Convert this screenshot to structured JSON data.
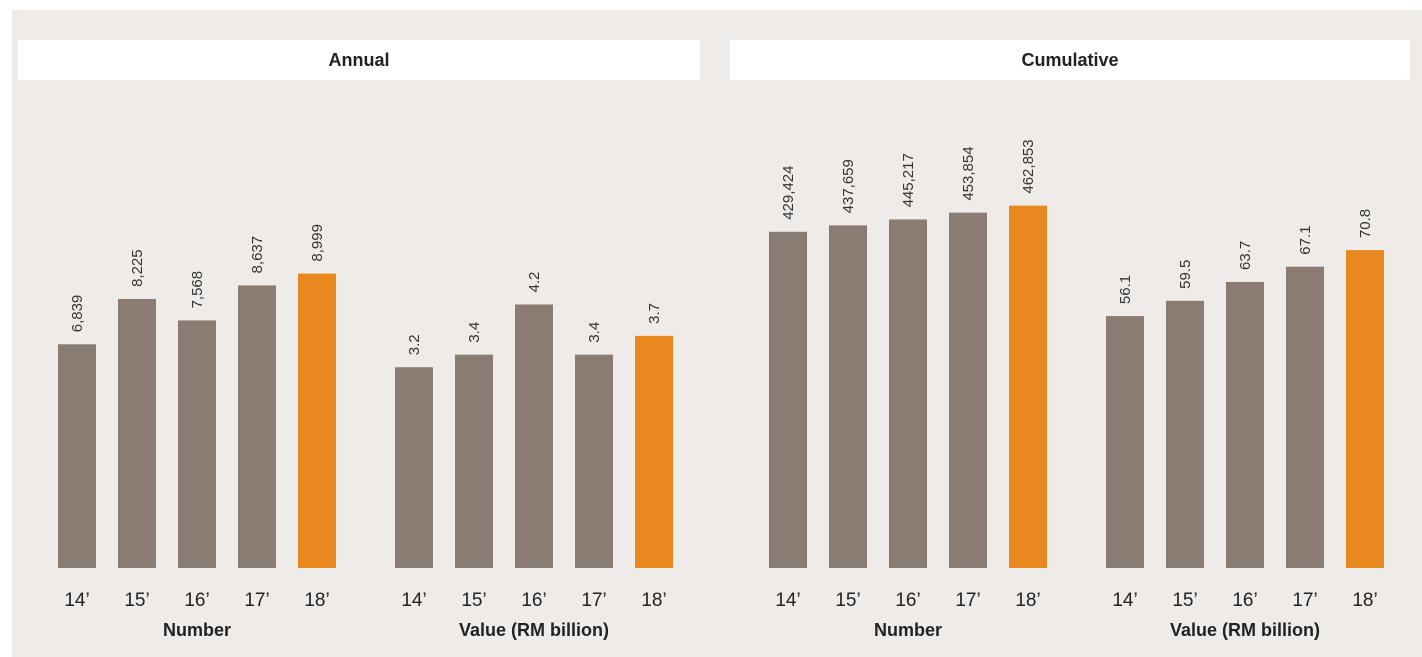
{
  "sections": [
    {
      "title": "Annual"
    },
    {
      "title": "Cumulative"
    }
  ],
  "colors": {
    "bar": "#8a7c73",
    "highlight": "#ea8820",
    "panel_bg": "#efebe8"
  },
  "chart_data": [
    {
      "type": "bar",
      "section": "Annual",
      "categories": [
        "14’",
        "15’",
        "16’",
        "17’",
        "18’"
      ],
      "values": [
        6839,
        8225,
        7568,
        8637,
        8999
      ],
      "value_labels": [
        "6,839",
        "8,225",
        "7,568",
        "8,637",
        "8,999"
      ],
      "highlight_index": 4,
      "xlabel": "Number",
      "ylim": [
        0,
        14000
      ]
    },
    {
      "type": "bar",
      "section": "Annual",
      "categories": [
        "14’",
        "15’",
        "16’",
        "17’",
        "18’"
      ],
      "values": [
        3.2,
        3.4,
        4.2,
        3.4,
        3.7
      ],
      "value_labels": [
        "3.2",
        "3.4",
        "4.2",
        "3.4",
        "3.7"
      ],
      "highlight_index": 4,
      "xlabel": "Value (RM billion)",
      "ylim": [
        0,
        7.3
      ]
    },
    {
      "type": "bar",
      "section": "Cumulative",
      "categories": [
        "14’",
        "15’",
        "16’",
        "17’",
        "18’"
      ],
      "values": [
        429424,
        437659,
        445217,
        453854,
        462853
      ],
      "value_labels": [
        "429,424",
        "437,659",
        "445,217",
        "453,854",
        "462,853"
      ],
      "highlight_index": 4,
      "xlabel": "Number",
      "ylim": [
        0,
        585000
      ]
    },
    {
      "type": "bar",
      "section": "Cumulative",
      "categories": [
        "14’",
        "15’",
        "16’",
        "17’",
        "18’"
      ],
      "values": [
        56.1,
        59.5,
        63.7,
        67.1,
        70.8
      ],
      "value_labels": [
        "56.1",
        "59.5",
        "63.7",
        "67.1",
        "70.8"
      ],
      "highlight_index": 4,
      "xlabel": "Value (RM billion)",
      "ylim": [
        0,
        102
      ]
    }
  ]
}
